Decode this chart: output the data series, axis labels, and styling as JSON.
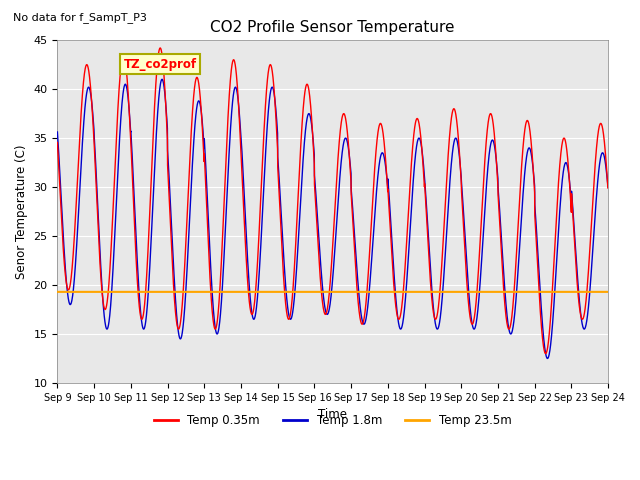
{
  "title": "CO2 Profile Sensor Temperature",
  "subtitle": "No data for f_SampT_P3",
  "ylabel": "Senor Temperature (C)",
  "xlabel": "Time",
  "ylim": [
    10,
    45
  ],
  "xlim": [
    0,
    15
  ],
  "bg_color": "#e8e8e8",
  "legend_label": "TZ_co2prof",
  "x_tick_labels": [
    "Sep 9",
    "Sep 10",
    "Sep 11",
    "Sep 12",
    "Sep 13",
    "Sep 14",
    "Sep 15",
    "Sep 16",
    "Sep 17",
    "Sep 18",
    "Sep 19",
    "Sep 20",
    "Sep 21",
    "Sep 22",
    "Sep 23",
    "Sep 24"
  ],
  "orange_line_y": 19.3,
  "line_colors": {
    "red": "#ff0000",
    "blue": "#0000cc",
    "orange": "#ffa500"
  },
  "legend_entries": [
    {
      "label": "Temp 0.35m",
      "color": "#ff0000"
    },
    {
      "label": "Temp 1.8m",
      "color": "#0000cc"
    },
    {
      "label": "Temp 23.5m",
      "color": "#ffa500"
    }
  ],
  "red_peaks": [
    42.5,
    43.5,
    44.2,
    41.2,
    43.0,
    42.5,
    40.5,
    37.5,
    36.5,
    37.0,
    38.0,
    37.5,
    36.8,
    35.0,
    36.5
  ],
  "blue_peaks": [
    40.2,
    40.5,
    41.0,
    38.8,
    40.2,
    40.2,
    37.5,
    35.0,
    33.5,
    35.0,
    35.0,
    34.8,
    34.0,
    32.5,
    33.5
  ],
  "red_troughs": [
    19.5,
    17.5,
    16.5,
    15.5,
    15.5,
    17.0,
    16.5,
    17.0,
    16.0,
    16.5,
    16.5,
    16.0,
    15.5,
    13.0,
    16.5
  ],
  "blue_troughs": [
    18.0,
    15.5,
    15.5,
    14.5,
    15.0,
    16.5,
    16.5,
    17.0,
    16.0,
    15.5,
    15.5,
    15.5,
    15.0,
    12.5,
    15.5
  ]
}
